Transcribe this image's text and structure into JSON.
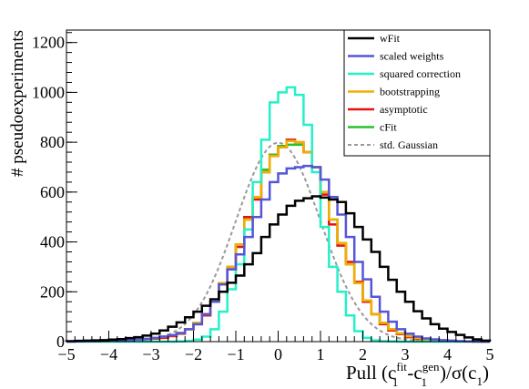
{
  "chart_data": {
    "type": "line",
    "title": "",
    "xlabel_parts": {
      "prefix": "Pull (c",
      "sub1": "1",
      "sup1": "fit",
      "dash": "-c",
      "sub2": "1",
      "sup2": "gen",
      "mid": ")/σ(c",
      "sub3": "1",
      "suffix": ")"
    },
    "ylabel": "# pseudoexperiments",
    "xlim": [
      -5,
      5
    ],
    "ylim": [
      0,
      1250
    ],
    "xticks": [
      -5,
      -4,
      -3,
      -2,
      -1,
      0,
      1,
      2,
      3,
      4,
      5
    ],
    "yticks": [
      0,
      200,
      400,
      600,
      800,
      1000,
      1200
    ],
    "bin_edges_start": -5,
    "bin_width": 0.2,
    "legend_position": "top-right",
    "series": [
      {
        "name": "wFit",
        "color": "#000000",
        "style": "step",
        "values": [
          2,
          3,
          4,
          5,
          6,
          8,
          10,
          14,
          18,
          24,
          32,
          45,
          60,
          77,
          98,
          120,
          144,
          170,
          200,
          236,
          265,
          310,
          355,
          420,
          470,
          510,
          545,
          565,
          575,
          583,
          578,
          570,
          560,
          515,
          460,
          410,
          360,
          300,
          248,
          200,
          160,
          122,
          93,
          70,
          52,
          39,
          27,
          17,
          9,
          4
        ]
      },
      {
        "name": "scaled weights",
        "color": "#5555d8",
        "style": "step",
        "values": [
          0,
          1,
          2,
          2,
          3,
          4,
          5,
          7,
          9,
          11,
          15,
          20,
          26,
          34,
          50,
          70,
          110,
          160,
          230,
          290,
          350,
          420,
          500,
          570,
          640,
          675,
          695,
          700,
          705,
          700,
          650,
          580,
          510,
          420,
          320,
          250,
          180,
          120,
          80,
          50,
          32,
          20,
          13,
          9,
          6,
          4,
          2,
          1,
          1,
          0
        ]
      },
      {
        "name": "squared correction",
        "color": "#25f0c8",
        "style": "step",
        "values": [
          0,
          0,
          0,
          0,
          0,
          0,
          0,
          0,
          0,
          0,
          0,
          0,
          0,
          1,
          3,
          8,
          20,
          50,
          120,
          210,
          310,
          450,
          640,
          810,
          960,
          1000,
          1020,
          990,
          870,
          680,
          460,
          300,
          200,
          105,
          42,
          15,
          5,
          2,
          1,
          0,
          0,
          0,
          0,
          0,
          0,
          0,
          0,
          0,
          0,
          0
        ]
      },
      {
        "name": "bootstrapping",
        "color": "#f0b000",
        "style": "step",
        "values": [
          1,
          1,
          2,
          2,
          3,
          3,
          4,
          6,
          8,
          11,
          14,
          20,
          26,
          35,
          50,
          75,
          110,
          160,
          235,
          300,
          390,
          490,
          580,
          680,
          745,
          780,
          805,
          800,
          760,
          700,
          600,
          490,
          395,
          310,
          235,
          165,
          110,
          75,
          50,
          33,
          22,
          14,
          8,
          5,
          3,
          2,
          1,
          1,
          0,
          0
        ]
      },
      {
        "name": "asymptotic",
        "color": "#e81010",
        "style": "step",
        "values": [
          1,
          1,
          2,
          2,
          3,
          3,
          4,
          5,
          7,
          10,
          12,
          15,
          22,
          32,
          50,
          70,
          105,
          160,
          230,
          290,
          380,
          500,
          570,
          680,
          745,
          780,
          810,
          800,
          760,
          700,
          590,
          470,
          385,
          320,
          240,
          160,
          110,
          70,
          45,
          30,
          18,
          11,
          7,
          4,
          3,
          2,
          1,
          1,
          0,
          0
        ]
      },
      {
        "name": "cFit",
        "color": "#2ac02a",
        "style": "step",
        "values": [
          1,
          1,
          2,
          2,
          3,
          3,
          4,
          6,
          8,
          11,
          14,
          20,
          26,
          35,
          50,
          75,
          110,
          160,
          235,
          300,
          390,
          490,
          580,
          690,
          750,
          785,
          790,
          790,
          760,
          700,
          600,
          490,
          395,
          310,
          235,
          165,
          110,
          75,
          50,
          33,
          22,
          14,
          8,
          5,
          3,
          2,
          1,
          1,
          0,
          0
        ]
      },
      {
        "name": "std. Gaussian",
        "color": "#999999",
        "style": "gaussian",
        "amplitude": 797.9,
        "sigma": 1
      }
    ]
  }
}
